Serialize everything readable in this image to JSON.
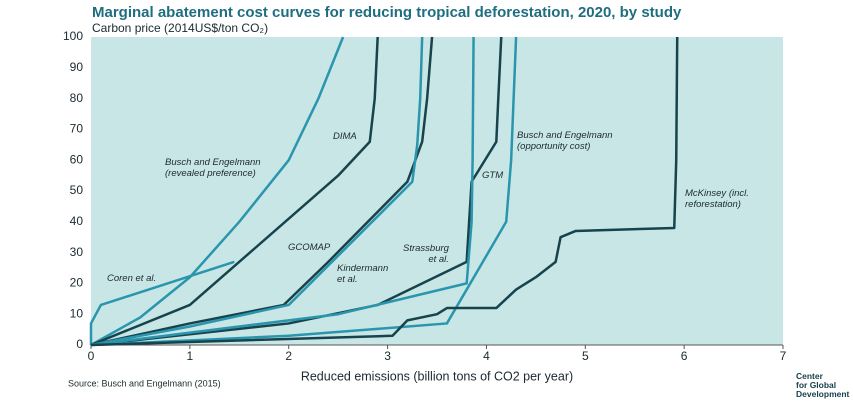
{
  "chart_data": {
    "type": "line",
    "title": "Marginal abatement cost curves for reducing tropical deforestation, 2020, by study",
    "subtitle": "Carbon price (2014US$/ton CO₂)",
    "x_label": "Reduced emissions (billion tons of CO2 per year)",
    "source": "Source: Busch and Engelmann (2015)",
    "logo": "Center\nfor Global\nDevelopment",
    "background": "#c9e6e6",
    "xlim": [
      0,
      7
    ],
    "xticks": [
      0,
      1,
      2,
      3,
      4,
      5,
      6,
      7
    ],
    "ylim": [
      0,
      100
    ],
    "yticks": [
      0,
      10,
      20,
      30,
      40,
      50,
      60,
      70,
      80,
      90,
      100
    ],
    "grid": false,
    "series": [
      {
        "name": "Coren et al.",
        "color": "#2a96ad",
        "x": [
          0,
          0,
          0.1,
          1.45
        ],
        "values": [
          0,
          7,
          13,
          27
        ]
      },
      {
        "name": "Busch and Engelmann\n(revealed preference)",
        "color": "#2a96ad",
        "x": [
          0,
          0.5,
          1,
          1.5,
          2,
          2.3,
          2.55
        ],
        "values": [
          0,
          9,
          22,
          40,
          60,
          80,
          100
        ]
      },
      {
        "name": "DIMA",
        "color": "#17434d",
        "x": [
          0,
          1,
          1.5,
          2.5,
          2.82,
          2.87,
          2.9
        ],
        "values": [
          0,
          13,
          27,
          55,
          66,
          80,
          100
        ]
      },
      {
        "name": "GCOMAP",
        "color": "#17434d",
        "x": [
          0,
          1,
          1.95,
          2.4,
          3.2,
          3.35,
          3.4,
          3.45
        ],
        "values": [
          0,
          7,
          13,
          27,
          53,
          66,
          80,
          100
        ]
      },
      {
        "name": "Kindermann\net al.",
        "color": "#2a96ad",
        "x": [
          0,
          1,
          2,
          3.25,
          3.3,
          3.33,
          3.35
        ],
        "values": [
          0,
          6,
          13,
          53,
          65,
          80,
          100
        ]
      },
      {
        "name": "Strassburg\net al.",
        "color": "#17434d",
        "x": [
          0,
          2,
          2.9,
          3.8,
          3.85,
          4.1,
          4.12,
          4.15
        ],
        "values": [
          0,
          7,
          13,
          27,
          53,
          66,
          80,
          100
        ]
      },
      {
        "name": "GTM",
        "color": "#2a96ad",
        "x": [
          0,
          2.5,
          3.8,
          3.85,
          3.86,
          3.87
        ],
        "values": [
          0,
          10,
          20,
          40,
          60,
          100
        ]
      },
      {
        "name": "Busch and Engelmann\n(opportunity cost)",
        "color": "#2a96ad",
        "x": [
          0,
          2,
          3.6,
          4.2,
          4.25,
          4.3
        ],
        "values": [
          0,
          3,
          7,
          40,
          60,
          100
        ]
      },
      {
        "name": "McKinsey (incl.\nreforestation)",
        "color": "#17434d",
        "x": [
          0,
          3.05,
          3.2,
          3.5,
          3.6,
          4.1,
          4.3,
          4.5,
          4.7,
          4.75,
          4.9,
          5.9,
          5.92,
          5.93
        ],
        "values": [
          0,
          3,
          8,
          10,
          12,
          12,
          18,
          22,
          27,
          35,
          37,
          38,
          60,
          100
        ]
      }
    ]
  }
}
